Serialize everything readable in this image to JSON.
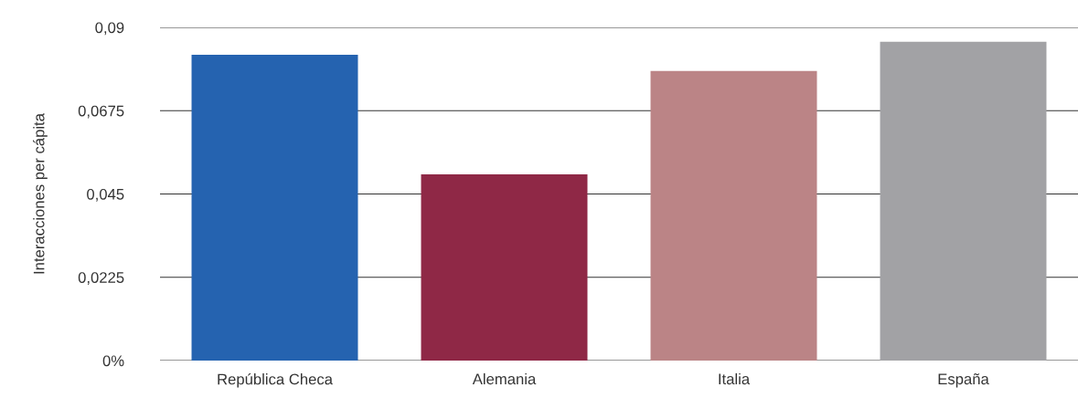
{
  "chart_data": {
    "type": "bar",
    "ylabel": "Interacciones per cápita",
    "categories": [
      "República Checa",
      "Alemania",
      "Italia",
      "España"
    ],
    "values": [
      0.0826,
      0.0503,
      0.0782,
      0.0861
    ],
    "colors": [
      "#2563b0",
      "#8f2846",
      "#bb8486",
      "#a2a2a5"
    ],
    "ylim": [
      0,
      0.09
    ],
    "yticks": [
      {
        "value": 0,
        "label": "0%"
      },
      {
        "value": 0.0225,
        "label": "0,0225"
      },
      {
        "value": 0.045,
        "label": "0,045"
      },
      {
        "value": 0.0675,
        "label": "0,0675"
      },
      {
        "value": 0.09,
        "label": "0,09"
      }
    ],
    "grid": "y"
  }
}
